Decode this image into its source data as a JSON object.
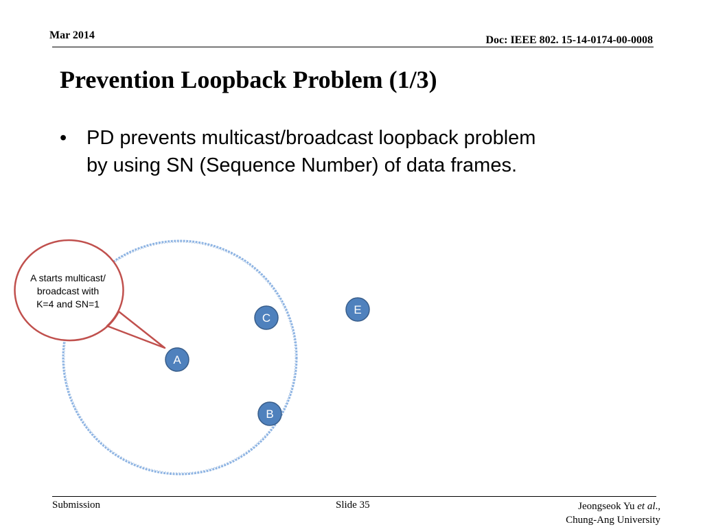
{
  "header": {
    "date": "Mar 2014",
    "doc_id": "Doc: IEEE 802. 15-14-0174-00-0008"
  },
  "title": "Prevention Loopback Problem (1/3)",
  "bullets": [
    {
      "symbol": "•",
      "line1": "PD prevents multicast/broadcast loopback problem",
      "line2": "by using SN (Sequence Number) of data frames."
    }
  ],
  "diagram": {
    "callout": {
      "line1": "A starts multicast/",
      "line2": "broadcast with",
      "line3": "K=4 and SN=1"
    },
    "nodes": {
      "a": "A",
      "b": "B",
      "c": "C",
      "e": "E"
    },
    "colors": {
      "node_fill": "#4f81bd",
      "node_stroke": "#385d8a",
      "range_circle": "#8eb4e3",
      "callout_stroke": "#c0504d"
    }
  },
  "footer": {
    "left": "Submission",
    "center": "Slide 35",
    "author_name": "Jeongseok Yu ",
    "author_etal": "et al",
    "author_suffix": ".,",
    "affiliation": "Chung-Ang University"
  }
}
